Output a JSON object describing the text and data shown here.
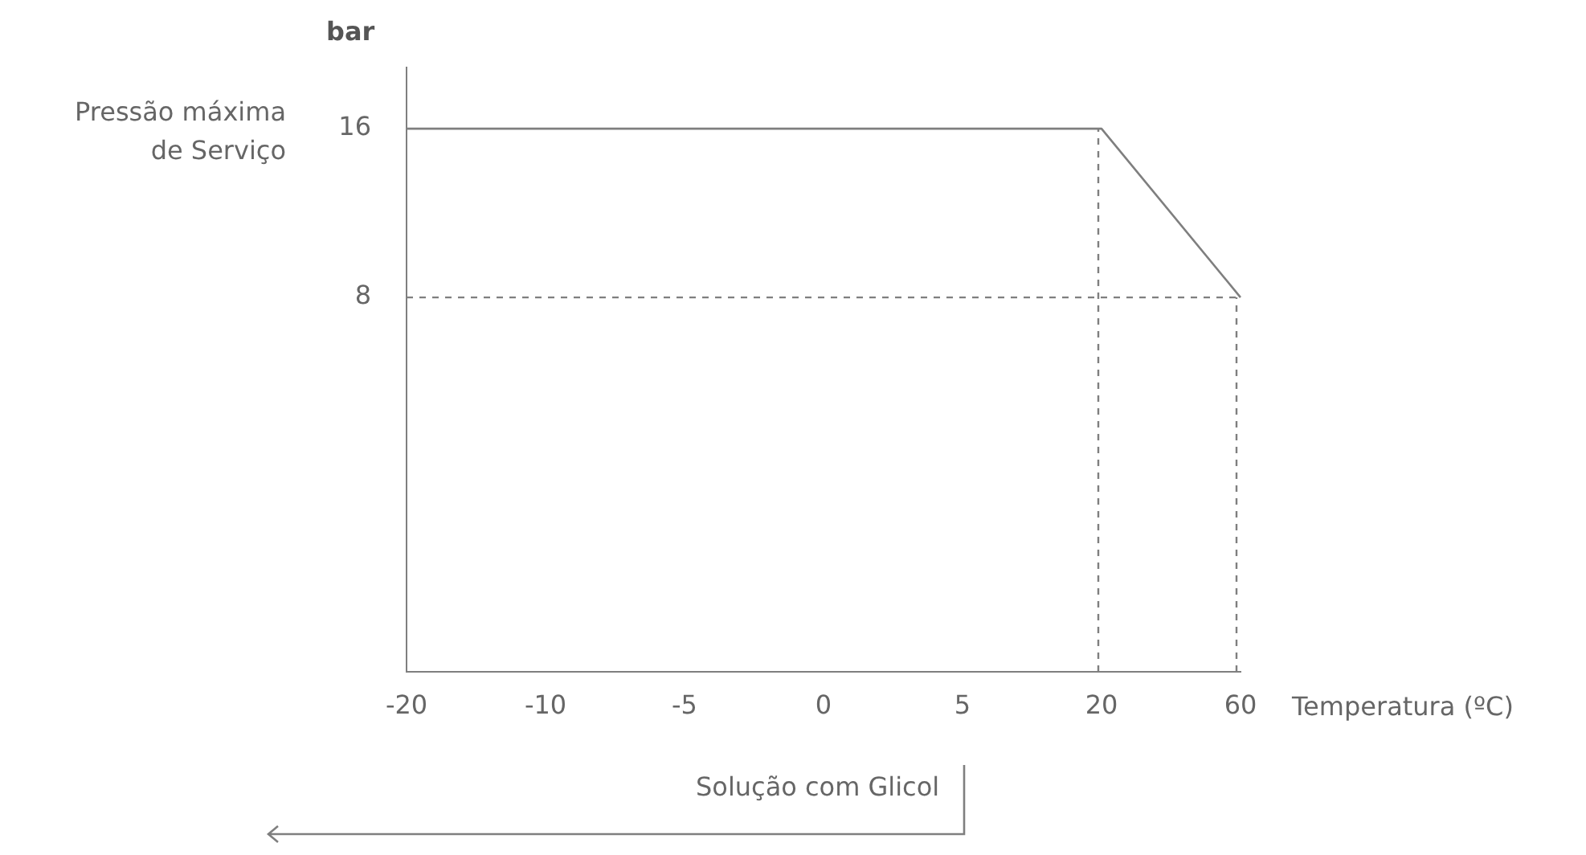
{
  "chart_data": {
    "type": "line",
    "ylabel": "bar",
    "xlabel": "Temperatura (ºC)",
    "annotations": [
      "Pressão máxima de Serviço",
      "Solução com Glicol"
    ],
    "categories": [
      "-20",
      "-10",
      "-5",
      "0",
      "5",
      "20",
      "60"
    ],
    "values": [
      16,
      16,
      16,
      16,
      16,
      16,
      8
    ],
    "color": "#7f7f7f",
    "marker": "none",
    "line_style": "solid",
    "ylim": [
      -9.75,
      18.9
    ],
    "yticks": [
      8,
      16
    ],
    "grid": false,
    "legend": false,
    "ref_lines": [
      {
        "axis": "y",
        "value": 8,
        "color": "#7f7f7f",
        "line_style": "dashed"
      },
      {
        "axis": "x",
        "value": "20",
        "color": "#7f7f7f",
        "line_style": "dashed"
      },
      {
        "axis": "x",
        "value": "60",
        "color": "#7f7f7f",
        "line_style": "dashed"
      }
    ]
  }
}
